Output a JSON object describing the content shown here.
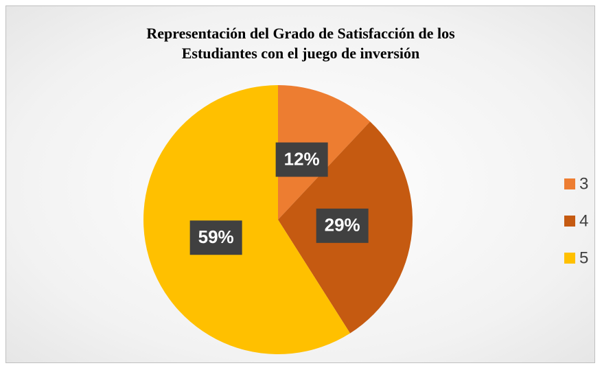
{
  "chart_data": {
    "type": "pie",
    "title": "Representación del Grado de Satisfacción de los Estudiantes con el juego de inversión",
    "categories": [
      "3",
      "4",
      "5"
    ],
    "values": [
      12,
      29,
      59
    ],
    "value_labels": [
      "12%",
      "29%",
      "59%"
    ],
    "colors": [
      "#ED7D31",
      "#C55A11",
      "#FFC000"
    ],
    "legend": "right"
  }
}
